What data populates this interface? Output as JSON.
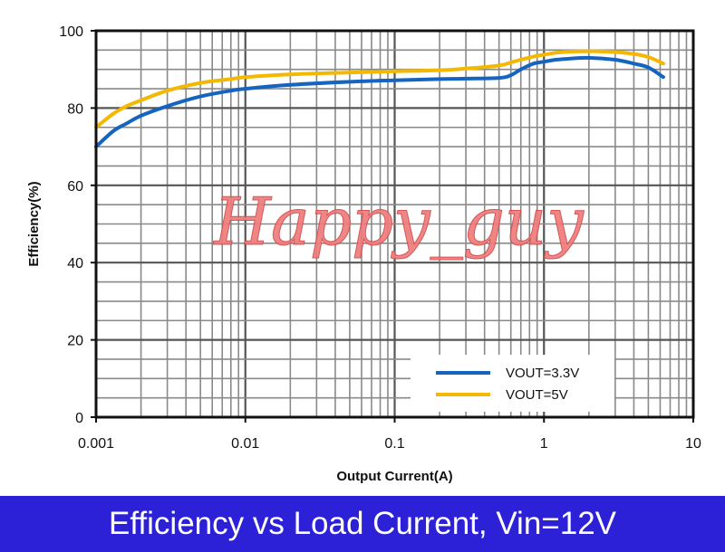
{
  "chart_data": {
    "type": "line",
    "xlabel": "Output Current(A)",
    "ylabel": "Efficiency(%)",
    "xscale": "log",
    "xlim": [
      0.001,
      10
    ],
    "ylim": [
      0,
      100
    ],
    "x_ticks": [
      "0.001",
      "0.01",
      "0.1",
      "1",
      "10"
    ],
    "y_ticks": [
      "0",
      "20",
      "40",
      "60",
      "80",
      "100"
    ],
    "grid": true,
    "legend_position": "lower-right",
    "series": [
      {
        "name": "VOUT=3.3V",
        "color": "#1565c0",
        "x": [
          0.001,
          0.0013,
          0.0016,
          0.002,
          0.003,
          0.005,
          0.008,
          0.01,
          0.02,
          0.05,
          0.1,
          0.2,
          0.3,
          0.5,
          0.6,
          0.7,
          0.85,
          1.0,
          1.2,
          1.5,
          2.0,
          3.0,
          4.0,
          5.0,
          6.3
        ],
        "y": [
          70,
          74,
          76,
          78,
          80.5,
          83,
          84.5,
          85,
          86,
          86.8,
          87.2,
          87.5,
          87.6,
          87.8,
          88.5,
          90,
          91.5,
          92,
          92.5,
          92.8,
          93,
          92.5,
          91.5,
          90.5,
          88
        ]
      },
      {
        "name": "VOUT=5V",
        "color": "#f5b800",
        "x": [
          0.001,
          0.0013,
          0.0016,
          0.002,
          0.003,
          0.005,
          0.008,
          0.01,
          0.02,
          0.05,
          0.1,
          0.2,
          0.3,
          0.5,
          0.6,
          0.7,
          0.85,
          1.0,
          1.2,
          1.5,
          2.0,
          3.0,
          4.0,
          5.0,
          6.3
        ],
        "y": [
          75,
          78.5,
          80.5,
          82,
          84.5,
          86.5,
          87.5,
          88,
          88.7,
          89.2,
          89.5,
          89.8,
          90.2,
          91,
          91.8,
          92.5,
          93.3,
          93.8,
          94.3,
          94.6,
          94.7,
          94.5,
          94,
          93.2,
          91.5
        ]
      }
    ]
  },
  "watermark": "Happy_guy",
  "caption": "Efficiency vs Load Current, Vin=12V"
}
